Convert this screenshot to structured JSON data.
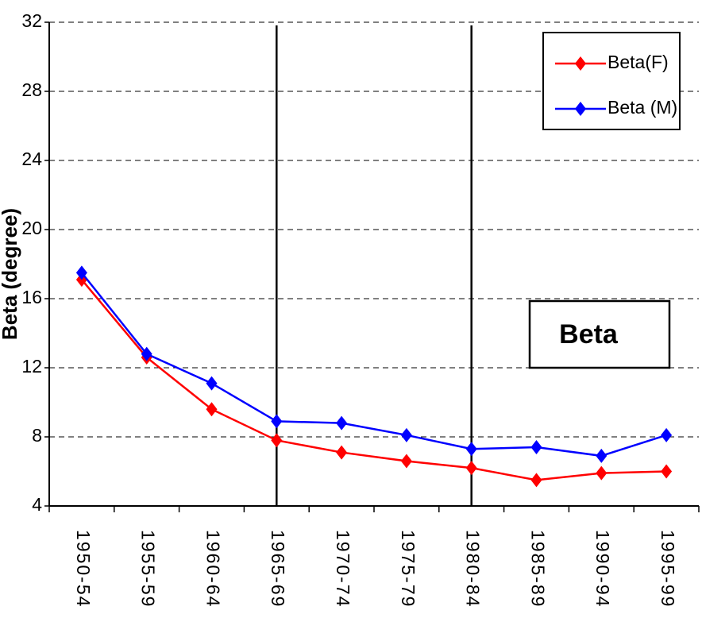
{
  "chart_data": {
    "type": "line",
    "ylabel": "Beta (degree)",
    "xlabel": "",
    "ylim": [
      4,
      32
    ],
    "yticks": [
      4,
      8,
      12,
      16,
      20,
      24,
      28,
      32
    ],
    "grid": "horizontal dashed",
    "categories": [
      "1950-54",
      "1955-59",
      "1960-64",
      "1965-69",
      "1970-74",
      "1975-79",
      "1980-84",
      "1985-89",
      "1990-94",
      "1995-99"
    ],
    "series": [
      {
        "name": "Beta(F)",
        "color": "#ff0000",
        "marker": "diamond",
        "values": [
          17.1,
          12.6,
          9.6,
          7.8,
          7.1,
          6.6,
          6.2,
          5.5,
          5.9,
          6.0
        ]
      },
      {
        "name": "Beta (M)",
        "color": "#0000ff",
        "marker": "diamond",
        "values": [
          17.5,
          12.8,
          11.1,
          8.9,
          8.8,
          8.1,
          7.3,
          7.4,
          6.9,
          8.1
        ]
      }
    ],
    "vertical_lines_at": [
      "1965-69",
      "1980-84"
    ],
    "legend_position": "top-right",
    "annotation": "Beta"
  }
}
